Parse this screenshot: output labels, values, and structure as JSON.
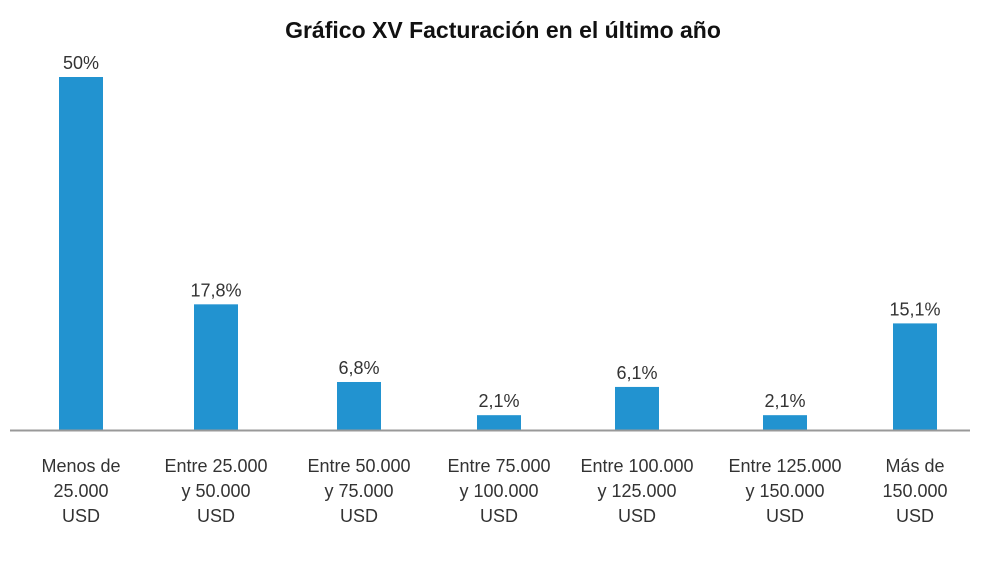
{
  "chart_data": {
    "type": "bar",
    "title": "Gráfico XV Facturación en el último año",
    "categories": [
      [
        "Menos de",
        "25.000",
        "USD"
      ],
      [
        "Entre 25.000",
        "y 50.000",
        "USD"
      ],
      [
        "Entre 50.000",
        "y 75.000",
        "USD"
      ],
      [
        "Entre 75.000",
        "y 100.000",
        "USD"
      ],
      [
        "Entre 100.000",
        "y 125.000",
        "USD"
      ],
      [
        "Entre 125.000",
        "y 150.000",
        "USD"
      ],
      [
        "Más de",
        "150.000",
        "USD"
      ]
    ],
    "values": [
      50,
      17.8,
      6.8,
      2.1,
      6.1,
      2.1,
      15.1
    ],
    "data_labels": [
      "50%",
      "17,8%",
      "6,8%",
      "2,1%",
      "6,1%",
      "2,1%",
      "15,1%"
    ],
    "xlabel": "",
    "ylabel": "",
    "ylim": [
      0,
      50
    ],
    "grid": false,
    "legend": "none",
    "bar_color": "#2293d0",
    "axis_color": "#999999"
  }
}
